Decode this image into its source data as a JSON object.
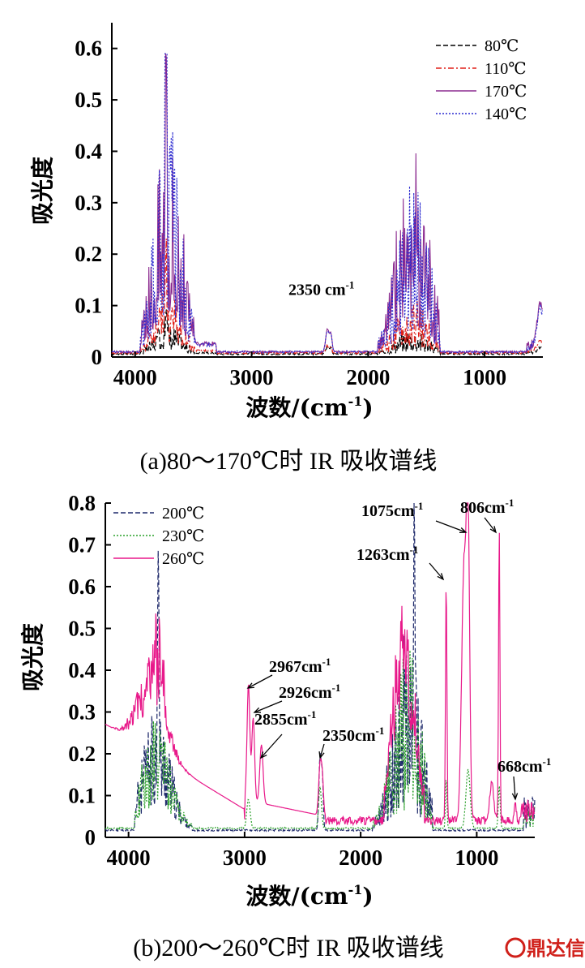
{
  "chart_data": [
    {
      "type": "line",
      "caption": "(a)80～170℃时 IR 吸收谱线",
      "xlabel": "波数/(cm",
      "xlabel_sup": "-1",
      "xlabel_end": ")",
      "ylabel": "吸光度",
      "xlim": [
        4200,
        500
      ],
      "ylim": [
        0,
        0.65
      ],
      "xticks": [
        4000,
        3000,
        2000,
        1000
      ],
      "yticks": [
        0,
        0.1,
        0.2,
        0.3,
        0.4,
        0.5,
        0.6
      ],
      "ytick_labels": [
        "0",
        "0.1",
        "0.2",
        "0.3",
        "0.4",
        "0.5",
        "0.6"
      ],
      "legend_position": "top-right",
      "series": [
        {
          "name": "80℃",
          "color": "#000000",
          "dash": "dashed",
          "scale": 0.13,
          "floor": 0.004
        },
        {
          "name": "110℃",
          "color": "#e0201a",
          "dash": "dashdot",
          "scale": 0.27,
          "floor": 0.006
        },
        {
          "name": "170℃",
          "color": "#8b2a8f",
          "dash": "solid",
          "scale": 1.0,
          "floor": 0.008
        },
        {
          "name": "140℃",
          "color": "#2a2ad0",
          "dash": "dotted",
          "scale": 0.93,
          "floor": 0.008
        }
      ],
      "peaks": [
        {
          "x": 3760,
          "y": 0.5
        },
        {
          "x": 3735,
          "y": 0.58
        },
        {
          "x": 3700,
          "y": 0.47
        },
        {
          "x": 3650,
          "y": 0.44
        },
        {
          "x": 3600,
          "y": 0.37
        },
        {
          "x": 3850,
          "y": 0.3
        },
        {
          "x": 3800,
          "y": 0.39
        },
        {
          "x": 3550,
          "y": 0.25
        },
        {
          "x": 2350,
          "y": 0.05
        },
        {
          "x": 1700,
          "y": 0.41
        },
        {
          "x": 1650,
          "y": 0.42
        },
        {
          "x": 1600,
          "y": 0.35
        },
        {
          "x": 1560,
          "y": 0.41
        },
        {
          "x": 1520,
          "y": 0.41
        },
        {
          "x": 1480,
          "y": 0.3
        },
        {
          "x": 1800,
          "y": 0.25
        },
        {
          "x": 1420,
          "y": 0.18
        },
        {
          "x": 520,
          "y": 0.09
        }
      ],
      "annotations": [
        {
          "text": "2350 cm",
          "sup": "-1",
          "x": 2350,
          "y": 0.07
        }
      ]
    },
    {
      "type": "line",
      "caption": "(b)200～260℃时 IR 吸收谱线",
      "xlabel": "波数/(cm",
      "xlabel_sup": "-1",
      "xlabel_end": ")",
      "ylabel": "吸光度",
      "xlim": [
        4200,
        500
      ],
      "ylim": [
        0,
        0.8
      ],
      "xticks": [
        4000,
        3000,
        2000,
        1000
      ],
      "yticks": [
        0,
        0.1,
        0.2,
        0.3,
        0.4,
        0.5,
        0.6,
        0.7,
        0.8
      ],
      "ytick_labels": [
        "0",
        "0.1",
        "0.2",
        "0.3",
        "0.4",
        "0.5",
        "0.6",
        "0.7",
        "0.8"
      ],
      "legend_position": "top-left",
      "series": [
        {
          "name": "200℃",
          "color": "#1f2a6b",
          "dash": "dashed"
        },
        {
          "name": "230℃",
          "color": "#2aa02a",
          "dash": "dotted"
        },
        {
          "name": "260℃",
          "color": "#e8198a",
          "dash": "solid"
        }
      ],
      "annotations": [
        {
          "text": "2967cm",
          "sup": "-1",
          "x": 2967,
          "y": 0.35
        },
        {
          "text": "2926cm",
          "sup": "-1",
          "x": 2926,
          "y": 0.3
        },
        {
          "text": "2855cm",
          "sup": "-1",
          "x": 2855,
          "y": 0.19
        },
        {
          "text": "2350cm",
          "sup": "-1",
          "x": 2350,
          "y": 0.2
        },
        {
          "text": "1263cm",
          "sup": "-1",
          "x": 1263,
          "y": 0.62
        },
        {
          "text": "1075cm",
          "sup": "-1",
          "x": 1075,
          "y": 0.74
        },
        {
          "text": "806cm",
          "sup": "-1",
          "x": 806,
          "y": 0.73
        },
        {
          "text": "668cm",
          "sup": "-1",
          "x": 668,
          "y": 0.07
        }
      ]
    }
  ],
  "watermark": {
    "text": "鼎达信"
  }
}
